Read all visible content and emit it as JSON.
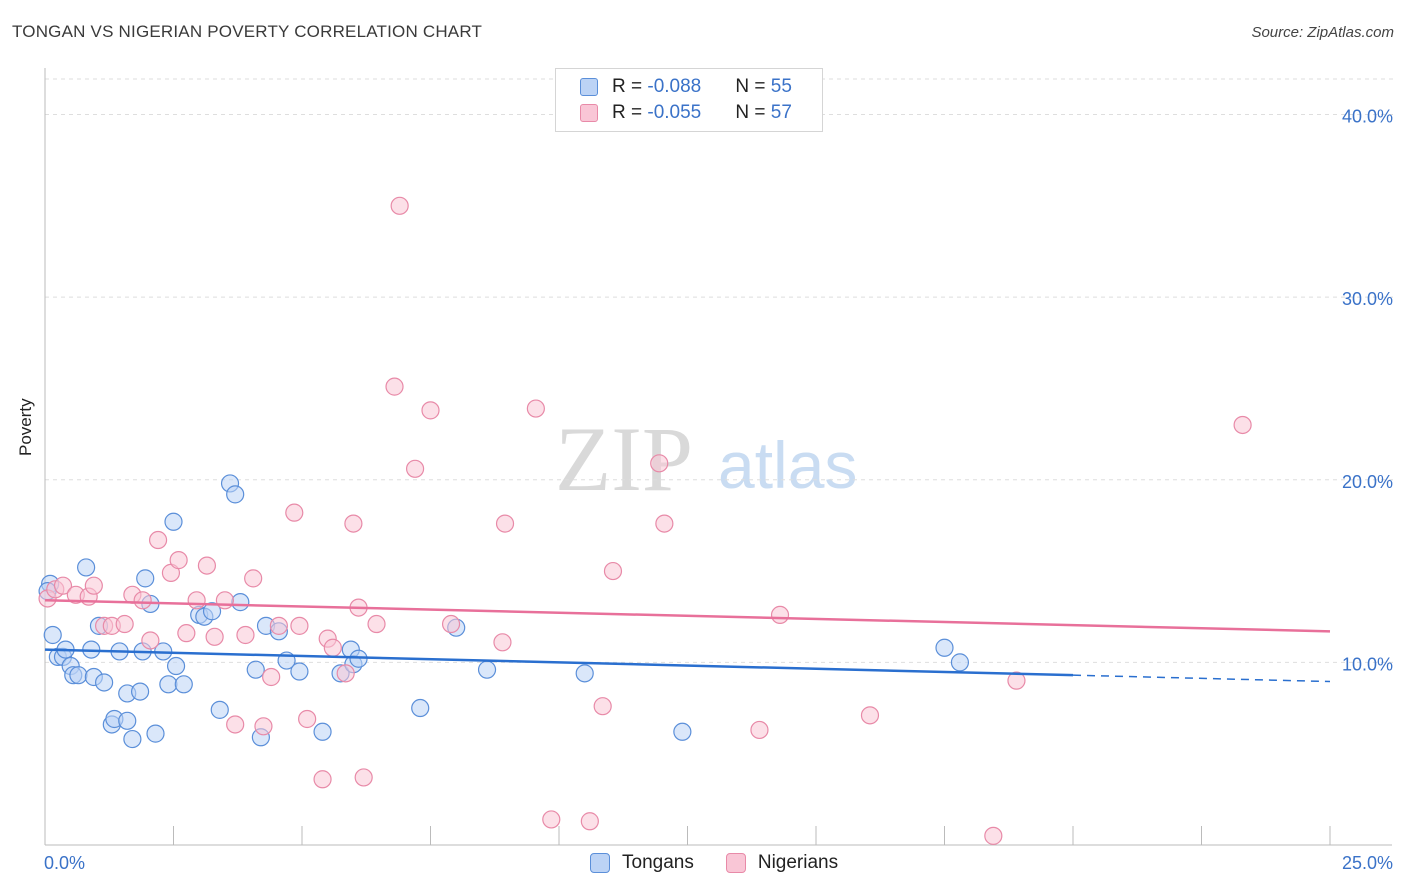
{
  "title": "TONGAN VS NIGERIAN POVERTY CORRELATION CHART",
  "source": "Source: ZipAtlas.com",
  "watermark": {
    "zip": "ZIP",
    "atlas": "atlas"
  },
  "legend": {
    "row1": {
      "r_label": "R = ",
      "r_value": "-0.088",
      "n_label": "N = ",
      "n_value": "55"
    },
    "row2": {
      "r_label": "R = ",
      "r_value": "-0.055",
      "n_label": "N = ",
      "n_value": "57"
    }
  },
  "colors": {
    "tongans_fill": "#bcd3f5",
    "tongans_stroke": "#5b8fd9",
    "tongans_line": "#2a6fcf",
    "nigerians_fill": "#f9c6d6",
    "nigerians_stroke": "#e88aa8",
    "nigerians_line": "#e8709a",
    "tick_label": "#3a72c8",
    "grid": "#dedede"
  },
  "chart_data": {
    "type": "scatter",
    "xlabel": "",
    "ylabel": "Poverty",
    "xlim": [
      0,
      25
    ],
    "ylim": [
      0,
      42
    ],
    "x_tick_labels": [
      "0.0%",
      "25.0%"
    ],
    "y_ticks": [
      10,
      20,
      30,
      40
    ],
    "y_tick_labels": [
      "10.0%",
      "20.0%",
      "30.0%",
      "40.0%"
    ],
    "grid": true,
    "series": [
      {
        "name": "Tongans",
        "points": [
          [
            0.1,
            14.3
          ],
          [
            0.15,
            11.5
          ],
          [
            0.25,
            10.3
          ],
          [
            0.35,
            10.3
          ],
          [
            0.4,
            10.7
          ],
          [
            0.5,
            9.8
          ],
          [
            0.55,
            9.3
          ],
          [
            0.65,
            9.3
          ],
          [
            0.8,
            15.2
          ],
          [
            0.9,
            10.7
          ],
          [
            0.95,
            9.2
          ],
          [
            1.05,
            12.0
          ],
          [
            1.15,
            8.9
          ],
          [
            1.3,
            6.6
          ],
          [
            1.35,
            6.9
          ],
          [
            1.45,
            10.6
          ],
          [
            1.6,
            6.8
          ],
          [
            1.6,
            8.3
          ],
          [
            1.7,
            5.8
          ],
          [
            1.85,
            8.4
          ],
          [
            1.9,
            10.6
          ],
          [
            1.95,
            14.6
          ],
          [
            2.05,
            13.2
          ],
          [
            2.15,
            6.1
          ],
          [
            2.3,
            10.6
          ],
          [
            2.4,
            8.8
          ],
          [
            2.5,
            17.7
          ],
          [
            2.55,
            9.8
          ],
          [
            2.7,
            8.8
          ],
          [
            3.0,
            12.6
          ],
          [
            3.1,
            12.5
          ],
          [
            3.25,
            12.8
          ],
          [
            3.4,
            7.4
          ],
          [
            3.6,
            19.8
          ],
          [
            3.7,
            19.2
          ],
          [
            3.8,
            13.3
          ],
          [
            4.1,
            9.6
          ],
          [
            4.2,
            5.9
          ],
          [
            4.3,
            12.0
          ],
          [
            4.55,
            11.7
          ],
          [
            4.7,
            10.1
          ],
          [
            4.95,
            9.5
          ],
          [
            5.4,
            6.2
          ],
          [
            5.75,
            9.4
          ],
          [
            5.95,
            10.7
          ],
          [
            6.0,
            9.9
          ],
          [
            6.1,
            10.2
          ],
          [
            7.3,
            7.5
          ],
          [
            8.0,
            11.9
          ],
          [
            8.6,
            9.6
          ],
          [
            10.5,
            9.4
          ],
          [
            12.4,
            6.2
          ],
          [
            17.5,
            10.8
          ],
          [
            17.8,
            10.0
          ],
          [
            0.05,
            13.9
          ]
        ]
      },
      {
        "name": "Nigerians",
        "points": [
          [
            0.05,
            13.5
          ],
          [
            0.2,
            14.0
          ],
          [
            0.35,
            14.2
          ],
          [
            0.6,
            13.7
          ],
          [
            0.85,
            13.6
          ],
          [
            0.95,
            14.2
          ],
          [
            1.15,
            12.0
          ],
          [
            1.3,
            12.0
          ],
          [
            1.55,
            12.1
          ],
          [
            1.7,
            13.7
          ],
          [
            1.9,
            13.4
          ],
          [
            2.05,
            11.2
          ],
          [
            2.2,
            16.7
          ],
          [
            2.45,
            14.9
          ],
          [
            2.6,
            15.6
          ],
          [
            2.75,
            11.6
          ],
          [
            2.95,
            13.4
          ],
          [
            3.15,
            15.3
          ],
          [
            3.3,
            11.4
          ],
          [
            3.5,
            13.4
          ],
          [
            3.7,
            6.6
          ],
          [
            3.9,
            11.5
          ],
          [
            4.05,
            14.6
          ],
          [
            4.25,
            6.5
          ],
          [
            4.4,
            9.2
          ],
          [
            4.55,
            12.0
          ],
          [
            4.85,
            18.2
          ],
          [
            4.95,
            12.0
          ],
          [
            5.1,
            6.9
          ],
          [
            5.4,
            3.6
          ],
          [
            5.5,
            11.3
          ],
          [
            5.6,
            10.8
          ],
          [
            5.85,
            9.4
          ],
          [
            6.0,
            17.6
          ],
          [
            6.1,
            13.0
          ],
          [
            6.2,
            3.7
          ],
          [
            6.45,
            12.1
          ],
          [
            6.8,
            25.1
          ],
          [
            6.9,
            35.0
          ],
          [
            7.2,
            20.6
          ],
          [
            7.5,
            23.8
          ],
          [
            7.9,
            12.1
          ],
          [
            8.9,
            11.1
          ],
          [
            8.95,
            17.6
          ],
          [
            9.55,
            23.9
          ],
          [
            9.85,
            1.4
          ],
          [
            10.6,
            1.3
          ],
          [
            10.85,
            7.6
          ],
          [
            11.05,
            15.0
          ],
          [
            11.95,
            20.9
          ],
          [
            12.05,
            17.6
          ],
          [
            13.9,
            6.3
          ],
          [
            14.3,
            12.6
          ],
          [
            16.05,
            7.1
          ],
          [
            18.45,
            0.5
          ],
          [
            18.9,
            9.0
          ],
          [
            23.3,
            23.0
          ]
        ]
      }
    ],
    "trendlines": [
      {
        "series": "Tongans",
        "x": [
          0,
          20
        ],
        "y": [
          10.7,
          9.3
        ],
        "dashed_extension_to_x": 25,
        "dashed_end_y": 8.95
      },
      {
        "series": "Nigerians",
        "x": [
          0,
          25
        ],
        "y": [
          13.4,
          11.7
        ]
      }
    ]
  },
  "bottom_legend": {
    "tongans": "Tongans",
    "nigerians": "Nigerians"
  }
}
